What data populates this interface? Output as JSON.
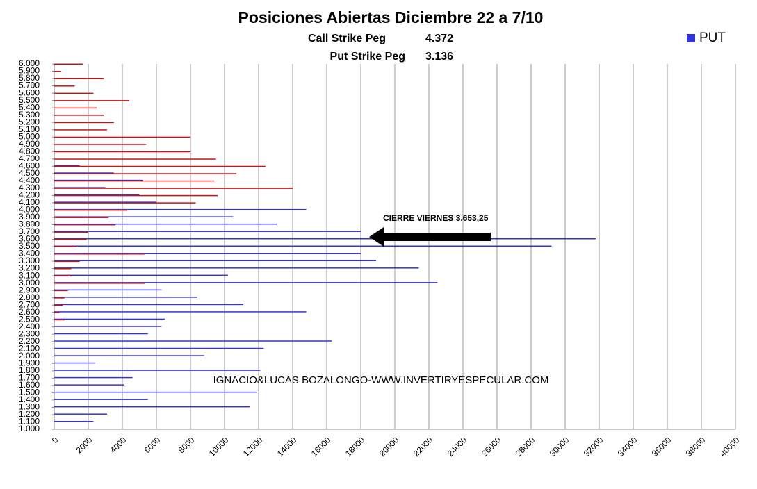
{
  "chart_data": {
    "type": "hbar",
    "title": "Posiciones Abiertas Diciembre 22 a 7/10",
    "subtitle_lines": [
      [
        "Call Strike Peg",
        "4.372"
      ],
      [
        "Put Strike Peg",
        "3.136"
      ]
    ],
    "annotation": "CIERRE VIERNES 3.653,25",
    "footer": "IGNACIO&LUCAS BOZALONGO-WWW.INVERTIRYESPECULAR.COM",
    "categories": [
      "1.000",
      "1.100",
      "1.200",
      "1.300",
      "1.400",
      "1.500",
      "1.600",
      "1.700",
      "1.800",
      "1.900",
      "2.000",
      "2.100",
      "2.200",
      "2.300",
      "2.400",
      "2.500",
      "2.600",
      "2.700",
      "2.800",
      "2.900",
      "3.000",
      "3.100",
      "3.200",
      "3.300",
      "3.400",
      "3.500",
      "3.600",
      "3.700",
      "3.800",
      "3.900",
      "4.000",
      "4.100",
      "4.200",
      "4.300",
      "4.400",
      "4.500",
      "4.600",
      "4.700",
      "4.800",
      "4.900",
      "5.000",
      "5.100",
      "5.200",
      "5.300",
      "5.400",
      "5.500",
      "5.600",
      "5.700",
      "5.800",
      "5.900",
      "6.000"
    ],
    "series": [
      {
        "name": "PUT",
        "color": "#3333dd",
        "values": [
          0,
          2300,
          3100,
          11500,
          5500,
          11900,
          4100,
          4600,
          12100,
          2400,
          8800,
          12300,
          16300,
          5500,
          6300,
          6500,
          14800,
          11100,
          8400,
          6300,
          22500,
          10200,
          21400,
          18900,
          18000,
          29200,
          31800,
          18000,
          13100,
          10500,
          14800,
          6000,
          5000,
          3000,
          5200,
          3500,
          1500,
          0,
          0,
          0,
          0,
          0,
          0,
          0,
          0,
          0,
          0,
          0,
          0,
          0,
          0
        ]
      },
      {
        "color": "#cc1111",
        "values": [
          0,
          0,
          0,
          0,
          0,
          0,
          0,
          0,
          0,
          0,
          0,
          0,
          0,
          0,
          0,
          600,
          300,
          500,
          600,
          800,
          5300,
          1000,
          1000,
          1500,
          5300,
          1300,
          1900,
          2000,
          3600,
          3200,
          4300,
          8300,
          9600,
          14000,
          9400,
          10700,
          12400,
          9500,
          8000,
          5400,
          8000,
          3100,
          3500,
          2900,
          2500,
          4400,
          2300,
          1200,
          2900,
          400,
          1700
        ]
      }
    ],
    "xlim": [
      0,
      40000
    ],
    "xticks": [
      0,
      2000,
      4000,
      6000,
      8000,
      10000,
      12000,
      14000,
      16000,
      18000,
      20000,
      22000,
      24000,
      26000,
      28000,
      30000,
      32000,
      34000,
      36000,
      38000,
      40000
    ],
    "grid": true,
    "legend": "top-right"
  }
}
